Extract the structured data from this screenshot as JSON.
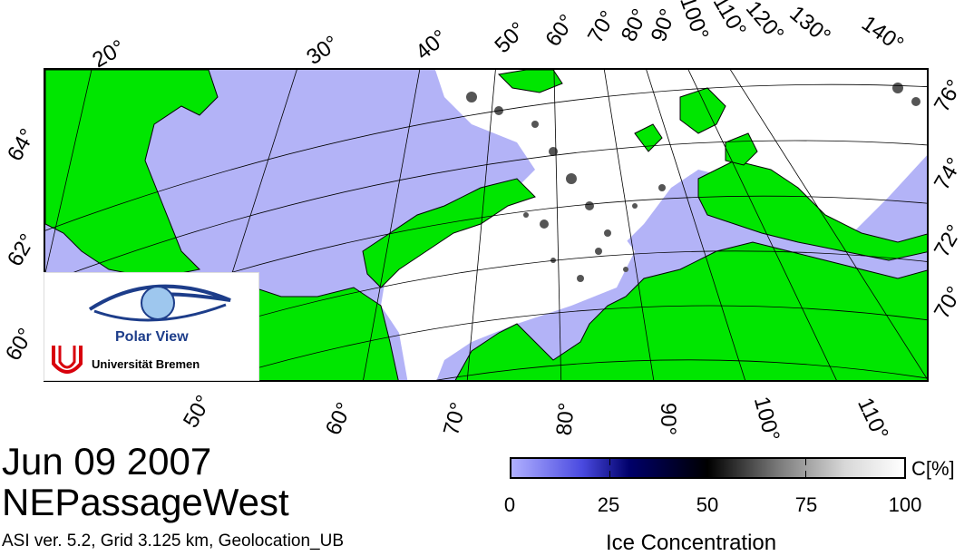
{
  "map": {
    "title_date": "Jun 09 2007",
    "product": "NEPassageWest",
    "info": "ASI ver. 5.2,  Grid 3.125 km, Geolocation_UB",
    "top_longitude_labels": [
      "20°",
      "30°",
      "40°",
      "50°",
      "60°",
      "70°",
      "80°",
      "90°",
      "100°",
      "110°",
      "120°",
      "130°",
      "140°"
    ],
    "bottom_longitude_labels": [
      "50°",
      "60°",
      "70°",
      "80°",
      "90°",
      "100°",
      "110°"
    ],
    "left_latitude_labels": [
      "64°",
      "62°",
      "60°"
    ],
    "right_latitude_labels": [
      "76°",
      "74°",
      "72°",
      "70°"
    ],
    "colors": {
      "land": "#00e600",
      "open_water": "#b3b3f7",
      "ice": "#ffffff",
      "grid": "#000000"
    }
  },
  "logo": {
    "name": "Polar View",
    "institution": "Universität Bremen"
  },
  "colorbar": {
    "title": "Ice Concentration",
    "unit": "C[%]",
    "tick_labels": [
      "0",
      "25",
      "50",
      "75",
      "100"
    ],
    "min": 0,
    "max": 100
  }
}
